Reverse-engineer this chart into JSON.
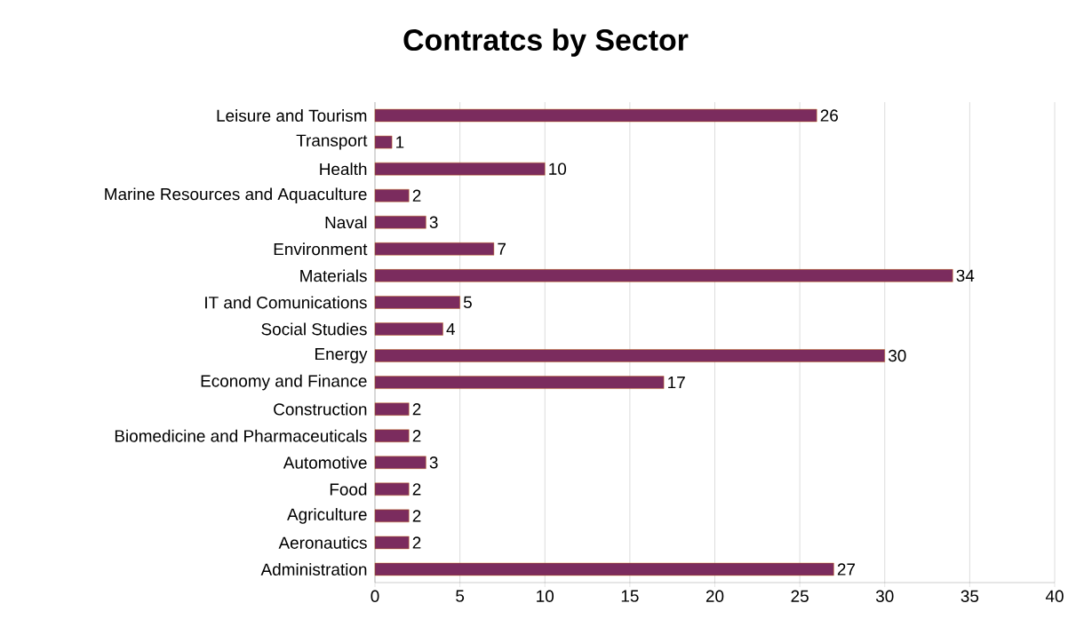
{
  "chart_data": {
    "type": "bar",
    "orientation": "horizontal",
    "title": "Contratcs by Sector",
    "categories": [
      "Leisure and Tourism",
      "Transport",
      "Health",
      "Marine Resources and Aquaculture",
      "Naval",
      "Environment",
      "Materials",
      "IT and Comunications",
      "Social Studies",
      "Energy",
      "Economy and Finance",
      "Construction",
      "Biomedicine and Pharmaceuticals",
      "Automotive",
      "Food",
      "Agriculture",
      "Aeronautics",
      "Administration"
    ],
    "values": [
      26,
      1,
      10,
      2,
      3,
      7,
      34,
      5,
      4,
      30,
      17,
      2,
      2,
      3,
      2,
      2,
      2,
      27
    ],
    "color": "#7b2c5e",
    "xlim": [
      0,
      40
    ],
    "xticks": [
      0,
      5,
      10,
      15,
      20,
      25,
      30,
      35,
      40
    ],
    "grid": "x",
    "data_labels": true
  }
}
